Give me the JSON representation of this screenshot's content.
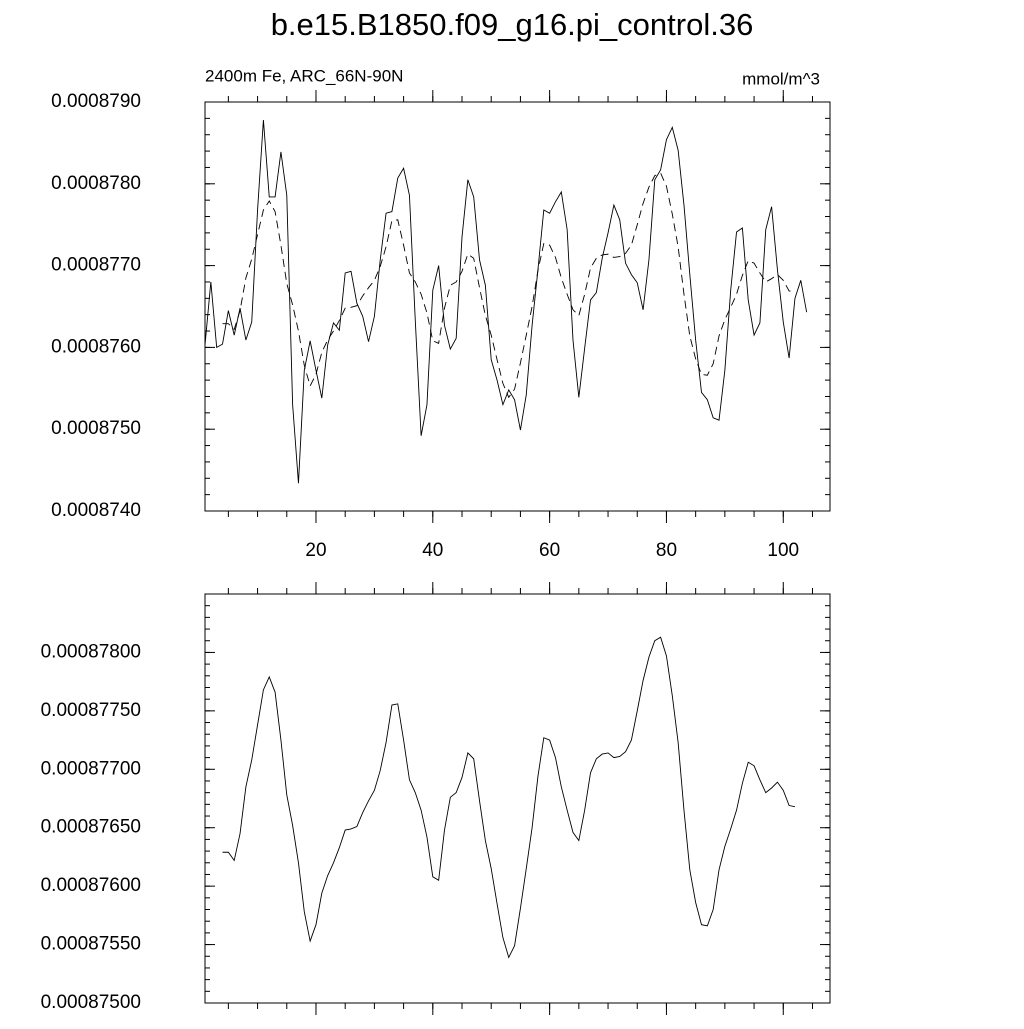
{
  "title": "b.e15.B1850.f09_g16.pi_control.36",
  "chart_data": [
    {
      "type": "line",
      "subtitle_left": "2400m Fe, ARC_66N-90N",
      "subtitle_right": "mmol/m^3",
      "x": [
        1,
        2,
        3,
        4,
        5,
        6,
        7,
        8,
        9,
        10,
        11,
        12,
        13,
        14,
        15,
        16,
        17,
        18,
        19,
        20,
        21,
        22,
        23,
        24,
        25,
        26,
        27,
        28,
        29,
        30,
        31,
        32,
        33,
        34,
        35,
        36,
        37,
        38,
        39,
        40,
        41,
        42,
        43,
        44,
        45,
        46,
        47,
        48,
        49,
        50,
        51,
        52,
        53,
        54,
        55,
        56,
        57,
        58,
        59,
        60,
        61,
        62,
        63,
        64,
        65,
        66,
        67,
        68,
        69,
        70,
        71,
        72,
        73,
        74,
        75,
        76,
        77,
        78,
        79,
        80,
        81,
        82,
        83,
        84,
        85,
        86,
        87,
        88,
        89,
        90,
        91,
        92,
        93,
        94,
        95,
        96,
        97,
        98,
        99,
        100,
        101,
        102,
        103,
        104
      ],
      "series": [
        {
          "color": "#000000",
          "dash": false,
          "values": [
            0.00087603,
            0.0008768,
            0.000876,
            0.00087604,
            0.00087645,
            0.00087615,
            0.00087648,
            0.00087609,
            0.00087631,
            0.00087768,
            0.00087878,
            0.00087784,
            0.00087784,
            0.00087839,
            0.00087786,
            0.0008753,
            0.00087434,
            0.00087572,
            0.00087608,
            0.00087572,
            0.00087538,
            0.00087603,
            0.0008763,
            0.00087621,
            0.00087691,
            0.00087693,
            0.00087654,
            0.00087638,
            0.00087607,
            0.00087638,
            0.00087707,
            0.00087764,
            0.00087766,
            0.00087807,
            0.00087819,
            0.00087786,
            0.00087633,
            0.00087492,
            0.0008753,
            0.0008767,
            0.000877,
            0.00087627,
            0.00087598,
            0.00087611,
            0.00087735,
            0.00087805,
            0.00087784,
            0.00087707,
            0.00087676,
            0.00087585,
            0.0008756,
            0.0008753,
            0.00087548,
            0.00087536,
            0.00087499,
            0.00087542,
            0.00087627,
            0.00087695,
            0.00087768,
            0.00087764,
            0.00087778,
            0.0008779,
            0.00087744,
            0.00087609,
            0.00087539,
            0.00087599,
            0.00087658,
            0.00087667,
            0.00087709,
            0.0008774,
            0.00087774,
            0.00087756,
            0.00087703,
            0.00087689,
            0.00087679,
            0.00087646,
            0.00087707,
            0.00087805,
            0.00087817,
            0.00087854,
            0.00087869,
            0.00087841,
            0.00087774,
            0.00087689,
            0.00087609,
            0.00087545,
            0.00087536,
            0.00087514,
            0.00087511,
            0.00087572,
            0.0008767,
            0.00087741,
            0.00087746,
            0.00087658,
            0.00087615,
            0.0008763,
            0.00087744,
            0.00087772,
            0.00087695,
            0.00087631,
            0.00087587,
            0.0008766,
            0.00087682,
            0.00087643
          ]
        },
        {
          "color": "#000000",
          "dash": true,
          "values": [
            null,
            null,
            null,
            0.00087629,
            0.00087629,
            0.00087622,
            0.00087645,
            0.00087685,
            0.00087708,
            0.00087738,
            0.00087768,
            0.00087779,
            0.00087766,
            0.00087725,
            0.00087678,
            0.00087652,
            0.0008762,
            0.00087578,
            0.00087553,
            0.00087567,
            0.00087594,
            0.00087609,
            0.0008762,
            0.00087633,
            0.00087648,
            0.00087649,
            0.00087651,
            0.00087663,
            0.00087673,
            0.00087682,
            0.00087699,
            0.00087723,
            0.00087755,
            0.00087756,
            0.00087725,
            0.00087691,
            0.0008768,
            0.00087665,
            0.00087642,
            0.00087608,
            0.00087605,
            0.00087648,
            0.00087676,
            0.0008768,
            0.00087693,
            0.00087714,
            0.00087709,
            0.00087673,
            0.00087639,
            0.00087615,
            0.00087585,
            0.00087556,
            0.00087539,
            0.00087549,
            0.00087581,
            0.00087615,
            0.0008765,
            0.00087694,
            0.00087727,
            0.00087725,
            0.0008771,
            0.00087685,
            0.00087665,
            0.00087646,
            0.00087639,
            0.00087665,
            0.00087697,
            0.00087709,
            0.00087713,
            0.00087714,
            0.0008771,
            0.00087711,
            0.00087715,
            0.00087725,
            0.0008775,
            0.00087776,
            0.00087796,
            0.0008781,
            0.00087813,
            0.00087797,
            0.00087763,
            0.00087723,
            0.00087665,
            0.00087614,
            0.00087586,
            0.00087567,
            0.00087566,
            0.0008758,
            0.00087614,
            0.00087634,
            0.00087649,
            0.00087665,
            0.00087688,
            0.00087706,
            0.00087703,
            0.00087691,
            0.0008768,
            0.00087684,
            0.00087689,
            0.00087682,
            0.00087669,
            0.00087668,
            null,
            null
          ]
        }
      ],
      "xlim": [
        1,
        108
      ],
      "xticks": [
        20,
        40,
        60,
        80,
        100
      ],
      "ylim": [
        0.000874,
        0.000879
      ],
      "yticks": [
        {
          "value": 0.000874,
          "label": "0.0008740"
        },
        {
          "value": 0.000875,
          "label": "0.0008750"
        },
        {
          "value": 0.000876,
          "label": "0.0008760"
        },
        {
          "value": 0.000877,
          "label": "0.0008770"
        },
        {
          "value": 0.000878,
          "label": "0.0008780"
        },
        {
          "value": 0.000879,
          "label": "0.0008790"
        }
      ]
    },
    {
      "type": "line",
      "x": [
        1,
        2,
        3,
        4,
        5,
        6,
        7,
        8,
        9,
        10,
        11,
        12,
        13,
        14,
        15,
        16,
        17,
        18,
        19,
        20,
        21,
        22,
        23,
        24,
        25,
        26,
        27,
        28,
        29,
        30,
        31,
        32,
        33,
        34,
        35,
        36,
        37,
        38,
        39,
        40,
        41,
        42,
        43,
        44,
        45,
        46,
        47,
        48,
        49,
        50,
        51,
        52,
        53,
        54,
        55,
        56,
        57,
        58,
        59,
        60,
        61,
        62,
        63,
        64,
        65,
        66,
        67,
        68,
        69,
        70,
        71,
        72,
        73,
        74,
        75,
        76,
        77,
        78,
        79,
        80,
        81,
        82,
        83,
        84,
        85,
        86,
        87,
        88,
        89,
        90,
        91,
        92,
        93,
        94,
        95,
        96,
        97,
        98,
        99,
        100,
        101,
        102,
        103,
        104
      ],
      "series": [
        {
          "color": "#000000",
          "dash": false,
          "values": [
            null,
            null,
            null,
            0.00087629,
            0.00087629,
            0.00087622,
            0.00087645,
            0.00087685,
            0.00087708,
            0.00087738,
            0.00087768,
            0.00087779,
            0.00087766,
            0.00087725,
            0.00087678,
            0.00087652,
            0.0008762,
            0.00087578,
            0.00087553,
            0.00087567,
            0.00087594,
            0.00087609,
            0.0008762,
            0.00087633,
            0.00087648,
            0.00087649,
            0.00087651,
            0.00087663,
            0.00087673,
            0.00087682,
            0.00087699,
            0.00087723,
            0.00087755,
            0.00087756,
            0.00087725,
            0.00087691,
            0.0008768,
            0.00087665,
            0.00087642,
            0.00087608,
            0.00087605,
            0.00087648,
            0.00087676,
            0.0008768,
            0.00087693,
            0.00087714,
            0.00087709,
            0.00087673,
            0.00087639,
            0.00087615,
            0.00087585,
            0.00087556,
            0.00087539,
            0.00087549,
            0.00087581,
            0.00087615,
            0.0008765,
            0.00087694,
            0.00087727,
            0.00087725,
            0.0008771,
            0.00087685,
            0.00087665,
            0.00087646,
            0.00087639,
            0.00087665,
            0.00087697,
            0.00087709,
            0.00087713,
            0.00087714,
            0.0008771,
            0.00087711,
            0.00087715,
            0.00087725,
            0.0008775,
            0.00087776,
            0.00087796,
            0.0008781,
            0.00087813,
            0.00087797,
            0.00087763,
            0.00087723,
            0.00087665,
            0.00087614,
            0.00087586,
            0.00087567,
            0.00087566,
            0.0008758,
            0.00087614,
            0.00087634,
            0.00087649,
            0.00087665,
            0.00087688,
            0.00087706,
            0.00087703,
            0.00087691,
            0.0008768,
            0.00087684,
            0.00087689,
            0.00087682,
            0.00087669,
            0.00087668,
            null,
            null
          ]
        }
      ],
      "xlim": [
        1,
        108
      ],
      "xticks": [
        20,
        40,
        60,
        80,
        100
      ],
      "ylim": [
        0.000875,
        0.0008785
      ],
      "yticks": [
        {
          "value": 0.000875,
          "label": "0.00087500"
        },
        {
          "value": 0.0008755,
          "label": "0.00087550"
        },
        {
          "value": 0.000876,
          "label": "0.00087600"
        },
        {
          "value": 0.0008765,
          "label": "0.00087650"
        },
        {
          "value": 0.000877,
          "label": "0.00087700"
        },
        {
          "value": 0.0008775,
          "label": "0.00087750"
        },
        {
          "value": 0.000878,
          "label": "0.00087800"
        }
      ]
    }
  ]
}
